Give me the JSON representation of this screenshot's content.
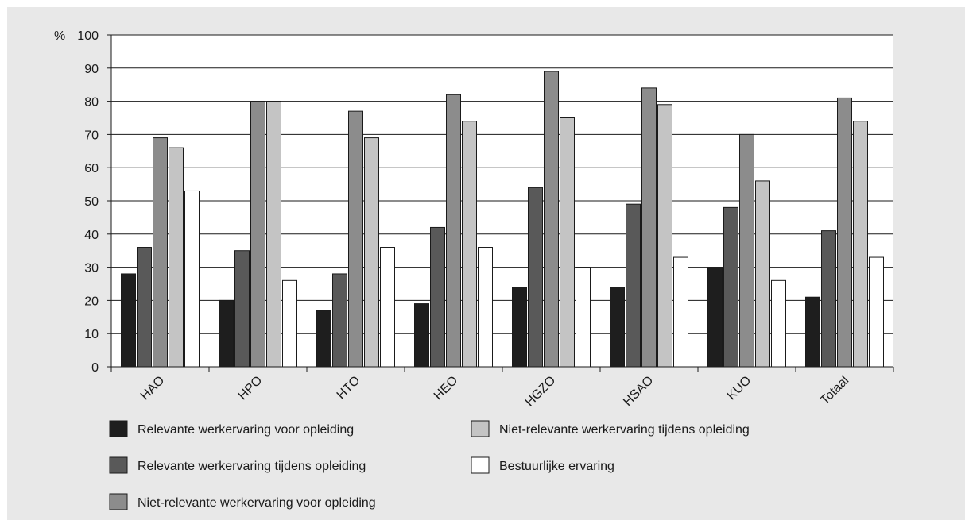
{
  "chart_data": {
    "type": "bar",
    "ylabel": "%",
    "ylim": [
      0,
      100
    ],
    "yticks": [
      0,
      10,
      20,
      30,
      40,
      50,
      60,
      70,
      80,
      90,
      100
    ],
    "categories": [
      "HAO",
      "HPO",
      "HTO",
      "HEO",
      "HGZO",
      "HSAO",
      "KUO",
      "Totaal"
    ],
    "grid": true,
    "legend_position": "bottom",
    "series": [
      {
        "name": "Relevante werkervaring voor opleiding",
        "color": "#1e1e1e",
        "values": [
          28,
          20,
          17,
          19,
          24,
          24,
          30,
          21
        ]
      },
      {
        "name": "Relevante werkervaring tijdens opleiding",
        "color": "#595959",
        "values": [
          36,
          35,
          28,
          42,
          54,
          49,
          48,
          41
        ]
      },
      {
        "name": "Niet-relevante werkervaring voor opleiding",
        "color": "#8c8c8c",
        "values": [
          69,
          80,
          77,
          82,
          89,
          84,
          70,
          81
        ]
      },
      {
        "name": "Niet-relevante werkervaring tijdens opleiding",
        "color": "#c4c4c4",
        "values": [
          66,
          80,
          69,
          74,
          75,
          79,
          56,
          74
        ]
      },
      {
        "name": "Bestuurlijke ervaring",
        "color": "#ffffff",
        "values": [
          53,
          26,
          36,
          36,
          30,
          33,
          26,
          33
        ]
      }
    ]
  }
}
